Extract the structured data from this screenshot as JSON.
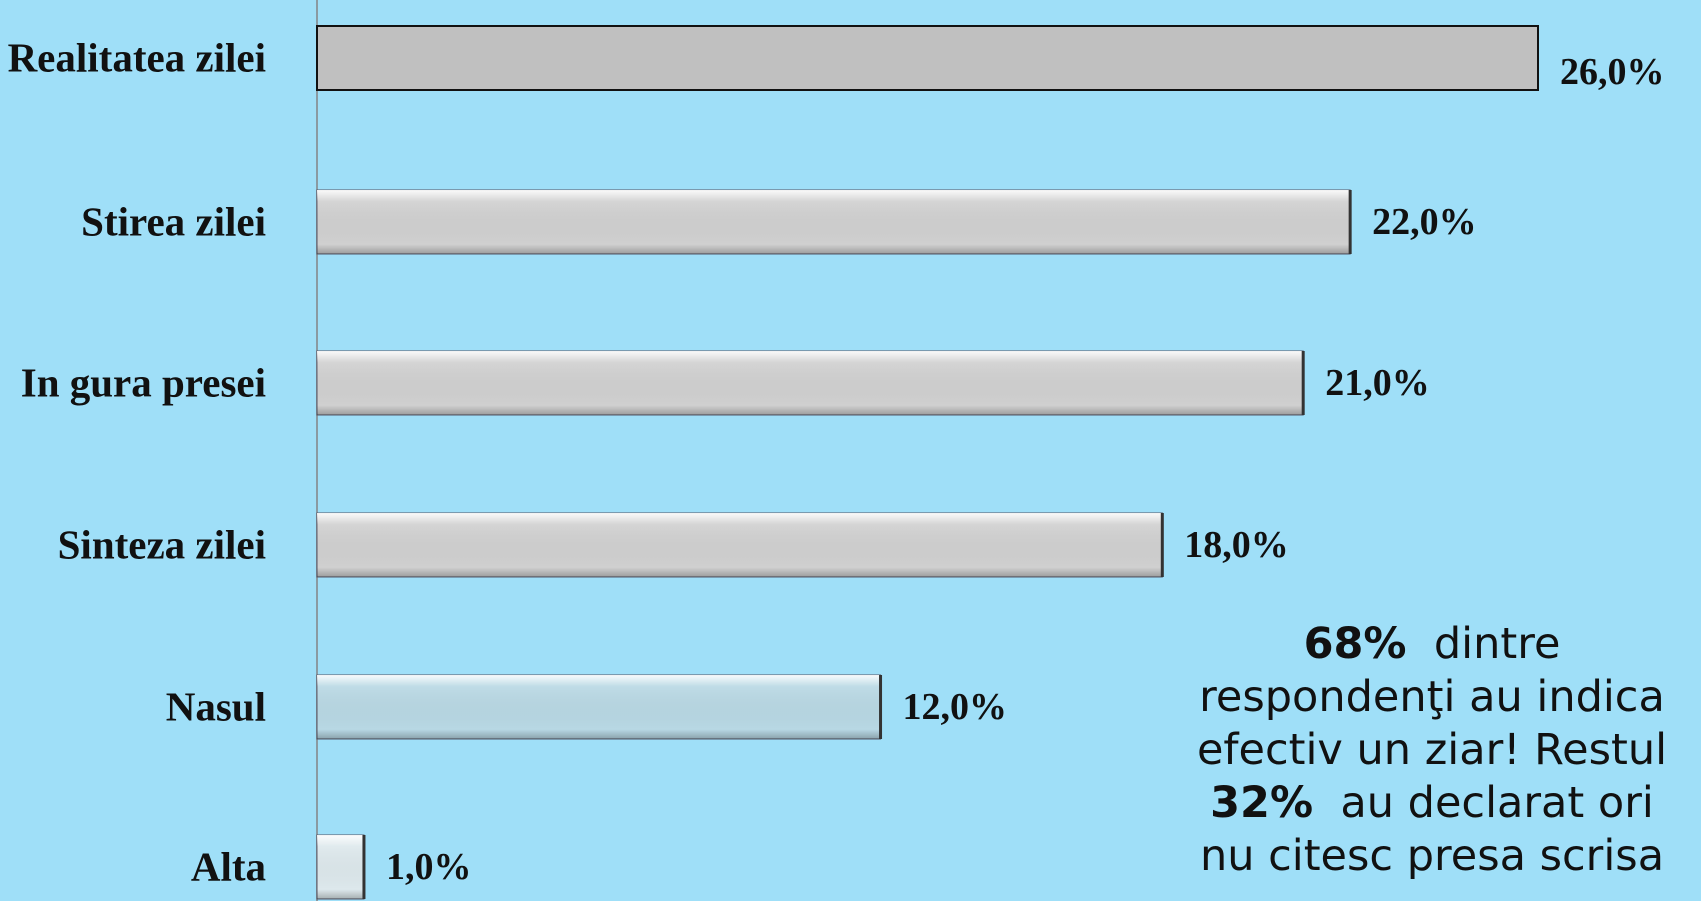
{
  "chart_data": {
    "type": "bar",
    "orientation": "horizontal",
    "categories": [
      "Realitatea zilei",
      "Stirea zilei",
      "In gura presei",
      "Sinteza zilei",
      "Nasul",
      "Alta"
    ],
    "values": [
      26,
      22,
      21,
      18,
      12,
      1
    ],
    "value_labels": [
      "26,0%",
      "22,0%",
      "21,0%",
      "18,0%",
      "12,0%",
      "1,0%"
    ],
    "colors": [
      "#c0c0c0",
      "#d0d0d0",
      "#d0d0d0",
      "#d0d0d0",
      "#b8d8e4",
      "#dde8ec"
    ],
    "annotation": [
      [
        {
          "text": "68%",
          "bold": true
        },
        {
          "text": "  dintre"
        }
      ],
      [
        {
          "text": "respondenţi au indica"
        }
      ],
      [
        {
          "text": "efectiv un ziar! Restul"
        }
      ],
      [
        {
          "text": "32%",
          "bold": true
        },
        {
          "text": "  au declarat ori"
        }
      ],
      [
        {
          "text": "nu citesc presa scrisa"
        }
      ]
    ]
  }
}
